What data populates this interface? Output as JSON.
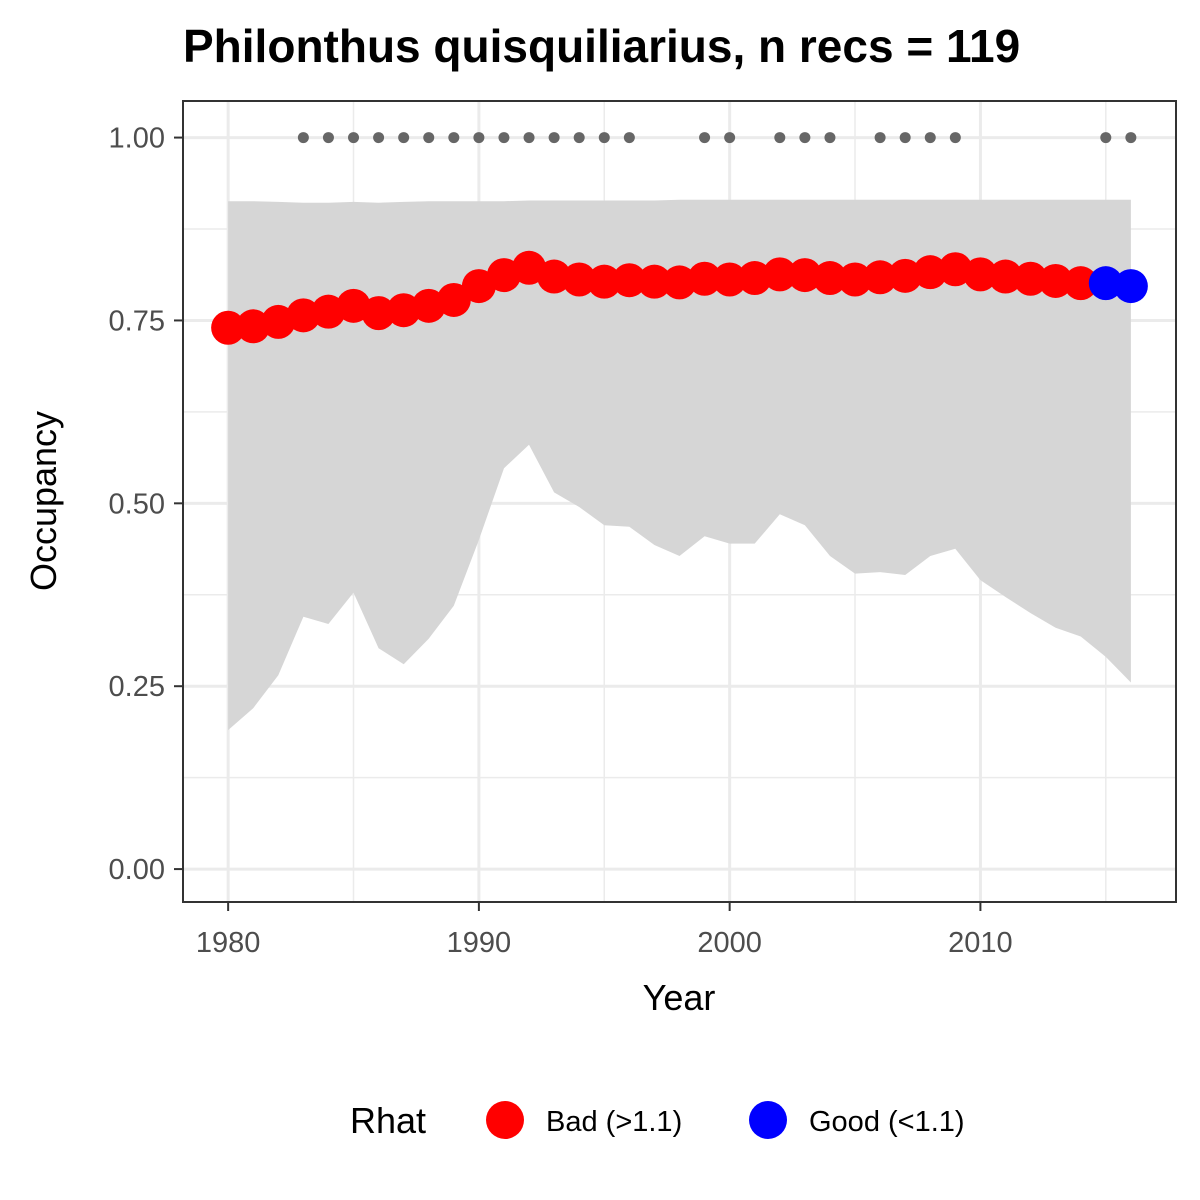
{
  "chart_data": {
    "type": "line",
    "title": "Philonthus quisquiliarius, n recs = 119",
    "xlabel": "Year",
    "ylabel": "Occupancy",
    "xlim": [
      1978.2,
      2017.8
    ],
    "ylim": [
      -0.045,
      1.05
    ],
    "x_ticks": [
      1980,
      1990,
      2000,
      2010
    ],
    "x_tick_labels": [
      "1980",
      "1990",
      "2000",
      "2010"
    ],
    "y_ticks": [
      0,
      0.25,
      0.5,
      0.75,
      1
    ],
    "y_tick_labels": [
      "0.00",
      "0.25",
      "0.50",
      "0.75",
      "1.00"
    ],
    "x_minor": [
      1985,
      1995,
      2005,
      2015
    ],
    "y_minor": [
      0.125,
      0.375,
      0.625,
      0.875
    ],
    "grid": true,
    "colors": {
      "bad": "#ff0000",
      "good": "#0000ff",
      "ribbon": "#d6d6d6",
      "records": "#666666",
      "grid": "#ebebeb",
      "border": "#333333"
    },
    "legend": {
      "position": "bottom",
      "title": "Rhat",
      "entries": [
        {
          "label": "Bad (>1.1)",
          "key": "bad"
        },
        {
          "label": "Good (<1.1)",
          "key": "good"
        }
      ]
    },
    "series": [
      {
        "key": "occupancy",
        "x": [
          1980,
          1981,
          1982,
          1983,
          1984,
          1985,
          1986,
          1987,
          1988,
          1989,
          1990,
          1991,
          1992,
          1993,
          1994,
          1995,
          1996,
          1997,
          1998,
          1999,
          2000,
          2001,
          2002,
          2003,
          2004,
          2005,
          2006,
          2007,
          2008,
          2009,
          2010,
          2011,
          2012,
          2013,
          2014,
          2015,
          2016
        ],
        "y": [
          0.74,
          0.742,
          0.748,
          0.757,
          0.762,
          0.77,
          0.76,
          0.764,
          0.77,
          0.778,
          0.797,
          0.812,
          0.822,
          0.81,
          0.806,
          0.803,
          0.805,
          0.803,
          0.802,
          0.807,
          0.806,
          0.808,
          0.813,
          0.812,
          0.808,
          0.806,
          0.809,
          0.811,
          0.816,
          0.82,
          0.813,
          0.81,
          0.807,
          0.804,
          0.801,
          0.801,
          0.797
        ],
        "rhat": [
          "bad",
          "bad",
          "bad",
          "bad",
          "bad",
          "bad",
          "bad",
          "bad",
          "bad",
          "bad",
          "bad",
          "bad",
          "bad",
          "bad",
          "bad",
          "bad",
          "bad",
          "bad",
          "bad",
          "bad",
          "bad",
          "bad",
          "bad",
          "bad",
          "bad",
          "bad",
          "bad",
          "bad",
          "bad",
          "bad",
          "bad",
          "bad",
          "bad",
          "bad",
          "bad",
          "good",
          "good"
        ],
        "lower": [
          0.19,
          0.22,
          0.265,
          0.345,
          0.335,
          0.378,
          0.302,
          0.28,
          0.315,
          0.36,
          0.45,
          0.548,
          0.58,
          0.515,
          0.495,
          0.47,
          0.468,
          0.443,
          0.428,
          0.455,
          0.445,
          0.445,
          0.485,
          0.47,
          0.428,
          0.404,
          0.406,
          0.402,
          0.428,
          0.438,
          0.395,
          0.372,
          0.35,
          0.33,
          0.318,
          0.29,
          0.255
        ],
        "upper": [
          0.913,
          0.913,
          0.912,
          0.911,
          0.911,
          0.912,
          0.911,
          0.912,
          0.913,
          0.913,
          0.913,
          0.913,
          0.914,
          0.914,
          0.914,
          0.914,
          0.914,
          0.914,
          0.915,
          0.915,
          0.915,
          0.915,
          0.915,
          0.915,
          0.915,
          0.915,
          0.915,
          0.915,
          0.915,
          0.915,
          0.915,
          0.915,
          0.915,
          0.915,
          0.915,
          0.915,
          0.915
        ]
      }
    ],
    "record_years": [
      1983,
      1984,
      1985,
      1986,
      1987,
      1988,
      1989,
      1990,
      1991,
      1992,
      1993,
      1994,
      1995,
      1996,
      1999,
      2000,
      2002,
      2003,
      2004,
      2006,
      2007,
      2008,
      2009,
      2015,
      2016
    ],
    "record_y": 1.0
  }
}
